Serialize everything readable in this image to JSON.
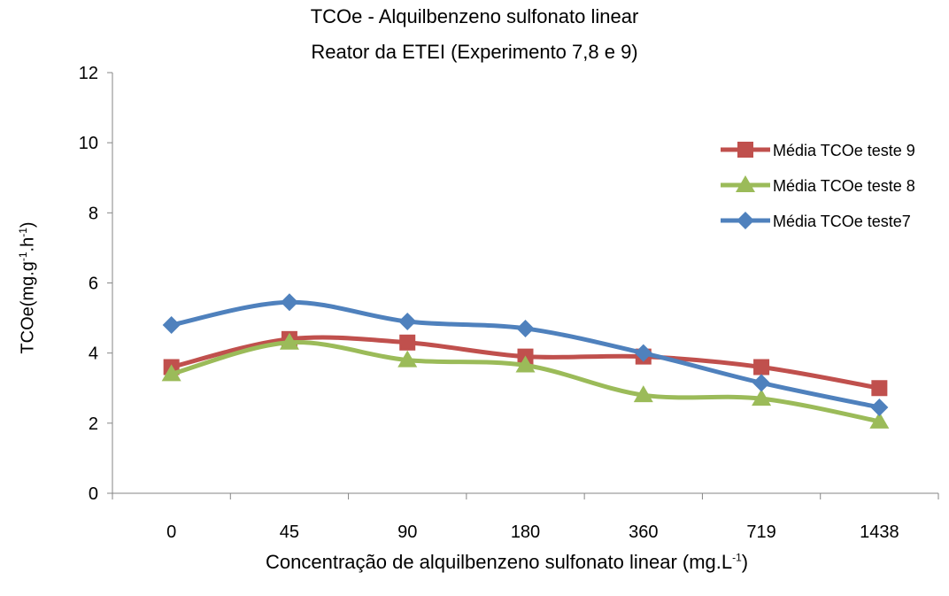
{
  "chart_data": {
    "type": "line",
    "title": "TCOe - Alquilbenzeno sulfonato linear",
    "subtitle": "Reator da ETEI (Experimento 7,8 e 9)",
    "xlabel": {
      "main": "Concentração de alquilbenzeno sulfonato linear (mg.L",
      "sup": "-1",
      "end": ")"
    },
    "ylabel": {
      "part1": "TCOe(mg.g",
      "sup1": "-1",
      "part2": ".h",
      "sup2": "-1",
      "end": ")"
    },
    "categories": [
      "0",
      "45",
      "90",
      "180",
      "360",
      "719",
      "1438"
    ],
    "ylim": [
      0,
      12
    ],
    "yticks": [
      0,
      2,
      4,
      6,
      8,
      10,
      12
    ],
    "grid": false,
    "legend_position": "right",
    "series": [
      {
        "name": "Média TCOe teste 9",
        "color": "#c0504d",
        "marker": "square",
        "values": [
          3.6,
          4.4,
          4.3,
          3.9,
          3.9,
          3.6,
          3.0
        ]
      },
      {
        "name": "Média TCOe teste 8",
        "color": "#9bbb59",
        "marker": "triangle",
        "values": [
          3.4,
          4.3,
          3.8,
          3.65,
          2.8,
          2.7,
          2.05
        ]
      },
      {
        "name": "Média TCOe teste7",
        "color": "#4f81bd",
        "marker": "diamond",
        "values": [
          4.8,
          5.45,
          4.9,
          4.7,
          4.0,
          3.15,
          2.45
        ]
      }
    ]
  }
}
